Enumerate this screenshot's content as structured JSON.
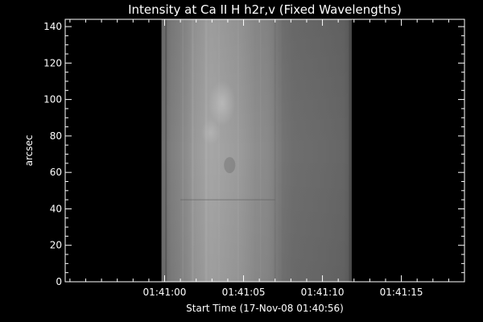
{
  "chart_data": {
    "type": "heatmap",
    "title": "Intensity at Ca II H h2r,v (Fixed Wavelengths)",
    "xlabel": "Start Time (17-Nov-08 01:40:56)",
    "ylabel": "arcsec",
    "x_ticks": [
      {
        "label": "01:41:00",
        "t": 4
      },
      {
        "label": "01:41:05",
        "t": 9
      },
      {
        "label": "01:41:10",
        "t": 14
      },
      {
        "label": "01:41:15",
        "t": 19
      }
    ],
    "xlim": [
      -2.3,
      23.0
    ],
    "ylim": [
      0,
      144
    ],
    "y_ticks": [
      0,
      20,
      40,
      60,
      80,
      100,
      120,
      140
    ],
    "image_extent_t": [
      3.8,
      15.8
    ],
    "colormap": "grayscale",
    "background_color": "#000000",
    "axis_color": "#ffffff"
  }
}
